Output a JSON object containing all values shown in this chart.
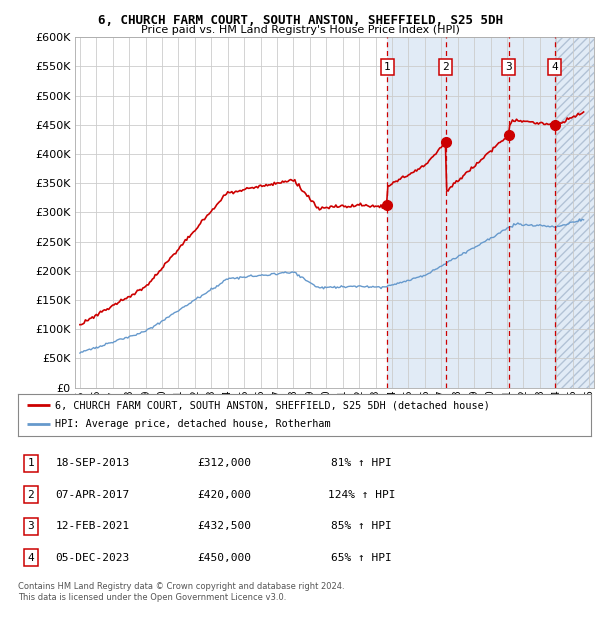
{
  "title1": "6, CHURCH FARM COURT, SOUTH ANSTON, SHEFFIELD, S25 5DH",
  "title2": "Price paid vs. HM Land Registry's House Price Index (HPI)",
  "legend_label_red": "6, CHURCH FARM COURT, SOUTH ANSTON, SHEFFIELD, S25 5DH (detached house)",
  "legend_label_blue": "HPI: Average price, detached house, Rotherham",
  "footer1": "Contains HM Land Registry data © Crown copyright and database right 2024.",
  "footer2": "This data is licensed under the Open Government Licence v3.0.",
  "sales": [
    {
      "num": 1,
      "date": "18-SEP-2013",
      "date_x": 2013.71,
      "price": 312000,
      "pct": "81%"
    },
    {
      "num": 2,
      "date": "07-APR-2017",
      "date_x": 2017.26,
      "price": 420000,
      "pct": "124%"
    },
    {
      "num": 3,
      "date": "12-FEB-2021",
      "date_x": 2021.11,
      "price": 432500,
      "pct": "85%"
    },
    {
      "num": 4,
      "date": "05-DEC-2023",
      "date_x": 2023.92,
      "price": 450000,
      "pct": "65%"
    }
  ],
  "ylim": [
    0,
    600000
  ],
  "xlim_start": 1994.7,
  "xlim_end": 2026.3,
  "bg_color": "#dce8f5",
  "plot_bg": "#ffffff",
  "grid_color": "#cccccc",
  "red_line_color": "#cc0000",
  "blue_line_color": "#6699cc"
}
